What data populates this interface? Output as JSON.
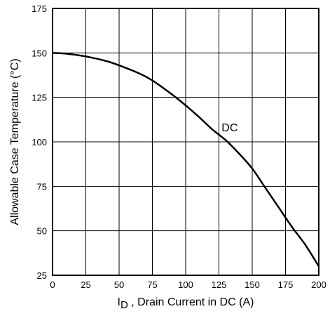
{
  "chart_data": {
    "type": "line",
    "title": "",
    "xlabel_main": "I",
    "xlabel_sub": "D",
    "xlabel_rest": " , Drain Current in DC (A)",
    "ylabel": "Allowable Case Temperature (°C)",
    "xlim": [
      0,
      200
    ],
    "ylim": [
      25,
      175
    ],
    "x_ticks": [
      "0",
      "25",
      "50",
      "75",
      "100",
      "125",
      "150",
      "175",
      "200"
    ],
    "y_ticks": [
      "25",
      "50",
      "75",
      "100",
      "125",
      "150",
      "175"
    ],
    "grid": true,
    "annotation": {
      "text": "DC",
      "x": 127,
      "y": 106
    },
    "series": [
      {
        "x": [
          0,
          10,
          25,
          40,
          50,
          65,
          75,
          90,
          100,
          110,
          120,
          130,
          140,
          150,
          160,
          170,
          180,
          190,
          200
        ],
        "y": [
          150,
          149.6,
          148,
          145.5,
          143,
          138.5,
          134.5,
          126.5,
          120.5,
          114,
          107,
          101,
          93.5,
          85,
          74,
          63,
          52,
          42,
          30
        ]
      }
    ],
    "colors": {
      "line": "#000000",
      "grid": "#000000",
      "background": "#ffffff"
    }
  }
}
